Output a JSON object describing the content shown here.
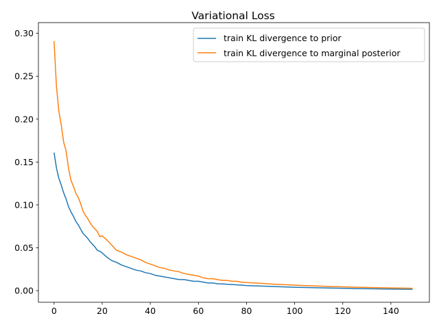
{
  "chart_data": {
    "type": "line",
    "title": "Variational Loss",
    "xlabel": "",
    "ylabel": "",
    "xlim": [
      -6.5,
      156
    ],
    "ylim": [
      -0.0135,
      0.3125
    ],
    "xticks": [
      0,
      20,
      40,
      60,
      80,
      100,
      120,
      140
    ],
    "xtick_labels": [
      "0",
      "20",
      "40",
      "60",
      "80",
      "100",
      "120",
      "140"
    ],
    "yticks": [
      0.0,
      0.05,
      0.1,
      0.15,
      0.2,
      0.25,
      0.3
    ],
    "ytick_labels": [
      "0.00",
      "0.05",
      "0.10",
      "0.15",
      "0.20",
      "0.25",
      "0.30"
    ],
    "grid": false,
    "legend_position": "top-right",
    "series": [
      {
        "name": "train KL divergence to prior",
        "color": "#1f77b4",
        "x": [
          0,
          1,
          2,
          3,
          4,
          5,
          6,
          7,
          8,
          9,
          10,
          11,
          12,
          13,
          14,
          15,
          16,
          17,
          18,
          19,
          20,
          22,
          24,
          26,
          28,
          30,
          32,
          34,
          36,
          38,
          40,
          42,
          44,
          46,
          48,
          50,
          52,
          54,
          56,
          58,
          60,
          62,
          64,
          66,
          68,
          70,
          72,
          74,
          76,
          78,
          80,
          85,
          90,
          95,
          100,
          105,
          110,
          115,
          120,
          125,
          130,
          135,
          140,
          145,
          149
        ],
        "y": [
          0.161,
          0.143,
          0.131,
          0.123,
          0.114,
          0.107,
          0.098,
          0.092,
          0.087,
          0.081,
          0.077,
          0.072,
          0.067,
          0.064,
          0.061,
          0.057,
          0.054,
          0.051,
          0.047,
          0.046,
          0.044,
          0.039,
          0.035,
          0.033,
          0.03,
          0.028,
          0.026,
          0.024,
          0.023,
          0.021,
          0.02,
          0.018,
          0.017,
          0.016,
          0.015,
          0.014,
          0.013,
          0.013,
          0.012,
          0.011,
          0.011,
          0.01,
          0.009,
          0.009,
          0.008,
          0.008,
          0.0075,
          0.0072,
          0.0068,
          0.0065,
          0.006,
          0.0055,
          0.005,
          0.0045,
          0.004,
          0.0037,
          0.0034,
          0.0031,
          0.0028,
          0.0025,
          0.0023,
          0.0021,
          0.0019,
          0.0017,
          0.0016
        ]
      },
      {
        "name": "train KL divergence to marginal posterior",
        "color": "#ff7f0e",
        "x": [
          0,
          1,
          2,
          3,
          4,
          5,
          6,
          7,
          8,
          9,
          10,
          11,
          12,
          13,
          14,
          15,
          16,
          17,
          18,
          19,
          20,
          22,
          24,
          26,
          28,
          30,
          32,
          34,
          36,
          38,
          40,
          42,
          44,
          46,
          48,
          50,
          52,
          54,
          56,
          58,
          60,
          62,
          64,
          66,
          68,
          70,
          72,
          74,
          76,
          78,
          80,
          85,
          90,
          95,
          100,
          105,
          110,
          115,
          120,
          125,
          130,
          135,
          140,
          145,
          149
        ],
        "y": [
          0.291,
          0.238,
          0.209,
          0.193,
          0.173,
          0.163,
          0.143,
          0.129,
          0.122,
          0.114,
          0.109,
          0.102,
          0.093,
          0.088,
          0.084,
          0.079,
          0.075,
          0.072,
          0.069,
          0.063,
          0.064,
          0.059,
          0.053,
          0.047,
          0.045,
          0.042,
          0.04,
          0.038,
          0.036,
          0.033,
          0.031,
          0.029,
          0.027,
          0.026,
          0.024,
          0.023,
          0.022,
          0.02,
          0.019,
          0.018,
          0.017,
          0.015,
          0.014,
          0.014,
          0.013,
          0.012,
          0.012,
          0.011,
          0.011,
          0.01,
          0.0095,
          0.0088,
          0.0078,
          0.0071,
          0.0065,
          0.0059,
          0.0054,
          0.0049,
          0.0045,
          0.0041,
          0.0038,
          0.0035,
          0.0032,
          0.003,
          0.0028
        ]
      }
    ]
  }
}
